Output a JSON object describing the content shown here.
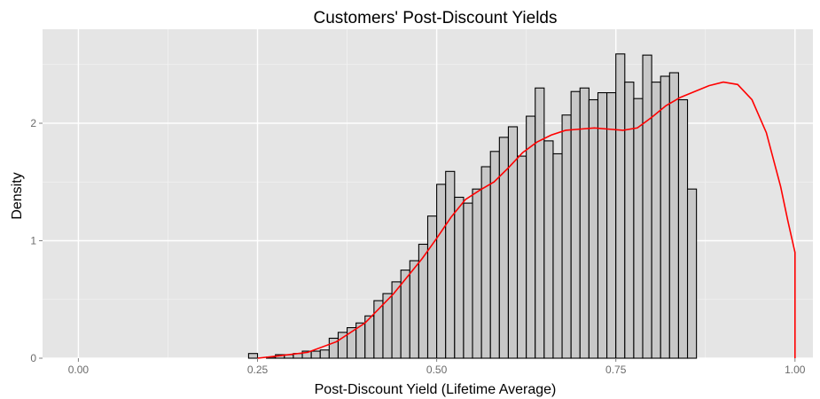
{
  "chart_data": {
    "type": "histogram",
    "title": "Customers' Post-Discount Yields",
    "xlabel": "Post-Discount Yield (Lifetime Average)",
    "ylabel": "Density",
    "xlim": [
      -0.05,
      1.025
    ],
    "ylim": [
      0,
      2.8
    ],
    "x_ticks": [
      0.0,
      0.25,
      0.5,
      0.75,
      1.0
    ],
    "x_tick_labels": [
      "0.00",
      "0.25",
      "0.50",
      "0.75",
      "1.00"
    ],
    "y_ticks": [
      0,
      1,
      2
    ],
    "y_tick_labels": [
      "0",
      "1",
      "2"
    ],
    "grid": true,
    "bin_start": 0.0,
    "bin_width": 0.0125,
    "values": [
      0,
      0,
      0,
      0,
      0,
      0,
      0,
      0,
      0,
      0,
      0,
      0,
      0,
      0,
      0,
      0,
      0,
      0,
      0,
      0.04,
      0,
      0.01,
      0.03,
      0.03,
      0.04,
      0.06,
      0.06,
      0.07,
      0.17,
      0.22,
      0.26,
      0.3,
      0.36,
      0.49,
      0.55,
      0.65,
      0.75,
      0.83,
      0.97,
      1.21,
      1.48,
      1.59,
      1.37,
      1.32,
      1.44,
      1.63,
      1.76,
      1.88,
      1.97,
      1.72,
      2.06,
      2.3,
      1.85,
      1.74,
      2.07,
      2.27,
      2.3,
      2.2,
      2.26,
      2.26,
      2.59,
      2.35,
      2.21,
      2.58,
      2.35,
      2.4,
      2.43,
      2.2,
      1.44
    ],
    "density_curve": {
      "color": "#ff0000",
      "x": [
        0.25,
        0.28,
        0.32,
        0.36,
        0.4,
        0.44,
        0.48,
        0.5,
        0.52,
        0.54,
        0.56,
        0.58,
        0.6,
        0.62,
        0.64,
        0.66,
        0.68,
        0.7,
        0.72,
        0.74,
        0.76,
        0.78,
        0.8,
        0.82,
        0.84,
        0.86,
        0.88,
        0.9,
        0.92,
        0.94,
        0.96,
        0.98,
        0.99,
        1.0
      ],
      "y": [
        0,
        0.02,
        0.05,
        0.14,
        0.3,
        0.55,
        0.85,
        1.02,
        1.2,
        1.35,
        1.43,
        1.5,
        1.62,
        1.75,
        1.84,
        1.9,
        1.94,
        1.95,
        1.96,
        1.95,
        1.94,
        1.96,
        2.05,
        2.15,
        2.22,
        2.27,
        2.32,
        2.35,
        2.33,
        2.2,
        1.92,
        1.46,
        1.17,
        0.9
      ]
    },
    "colors": {
      "panel_background": "#e5e5e5",
      "bar_fill": "#c8c8c8",
      "bar_outline": "#000000",
      "grid_major": "#ffffff"
    }
  }
}
